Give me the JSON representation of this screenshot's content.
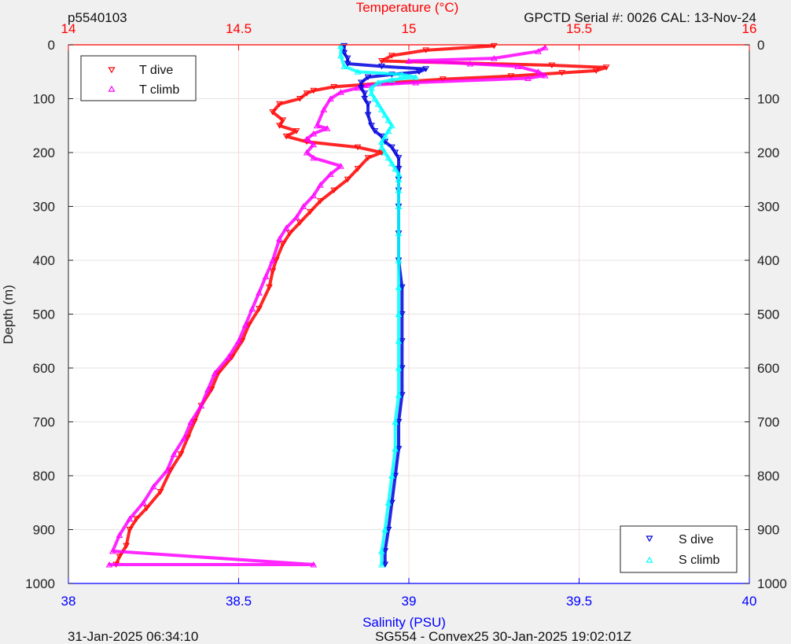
{
  "header": {
    "profile_id": "p5540103",
    "serial_text": "GPCTD Serial #: 0026 CAL: 13-Nov-24"
  },
  "footer": {
    "left_text": "31-Jan-2025 06:34:10",
    "center_text": "SG554 - Convex25 30-Jan-2025 19:02:01Z"
  },
  "colors": {
    "temperature_axis": "#ff0000",
    "salinity_axis": "#0000ff",
    "t_dive": "#ff0000",
    "t_climb": "#ff00ff",
    "s_dive": "#0000dd",
    "s_climb": "#00ffff"
  },
  "chart_data": {
    "type": "scatter",
    "y_axis": {
      "label": "Depth (m)",
      "range": [
        0,
        1000
      ],
      "reversed": true,
      "ticks": [
        0,
        100,
        200,
        300,
        400,
        500,
        600,
        700,
        800,
        900,
        1000
      ]
    },
    "x_axis_top": {
      "label": "Temperature (°C)",
      "range": [
        14,
        16
      ],
      "ticks": [
        "14",
        "14.5",
        "15",
        "15.5",
        "16"
      ]
    },
    "x_axis_bottom": {
      "label": "Salinity (PSU)",
      "range": [
        38,
        40
      ],
      "ticks": [
        "38",
        "38.5",
        "39",
        "39.5",
        "40"
      ]
    },
    "grid": true,
    "legends": [
      {
        "position": "top-left",
        "entries": [
          "T dive",
          "T climb"
        ]
      },
      {
        "position": "bottom-right",
        "entries": [
          "S dive",
          "S climb"
        ]
      }
    ],
    "series": [
      {
        "name": "T dive",
        "axis": "temperature",
        "marker": "triangle-down",
        "points": [
          [
            15.25,
            2
          ],
          [
            15.05,
            10
          ],
          [
            14.95,
            20
          ],
          [
            14.92,
            30
          ],
          [
            15.42,
            38
          ],
          [
            15.58,
            42
          ],
          [
            15.55,
            48
          ],
          [
            15.45,
            52
          ],
          [
            15.3,
            58
          ],
          [
            15.1,
            64
          ],
          [
            14.95,
            70
          ],
          [
            14.78,
            78
          ],
          [
            14.72,
            85
          ],
          [
            14.7,
            90
          ],
          [
            14.68,
            100
          ],
          [
            14.62,
            110
          ],
          [
            14.6,
            125
          ],
          [
            14.63,
            140
          ],
          [
            14.62,
            150
          ],
          [
            14.67,
            160
          ],
          [
            14.64,
            170
          ],
          [
            14.7,
            180
          ],
          [
            14.85,
            190
          ],
          [
            14.92,
            200
          ],
          [
            14.88,
            210
          ],
          [
            14.85,
            230
          ],
          [
            14.82,
            250
          ],
          [
            14.78,
            270
          ],
          [
            14.74,
            290
          ],
          [
            14.71,
            310
          ],
          [
            14.68,
            330
          ],
          [
            14.65,
            350
          ],
          [
            14.63,
            370
          ],
          [
            14.61,
            400
          ],
          [
            14.6,
            420
          ],
          [
            14.59,
            450
          ],
          [
            14.56,
            490
          ],
          [
            14.53,
            520
          ],
          [
            14.51,
            550
          ],
          [
            14.48,
            580
          ],
          [
            14.44,
            610
          ],
          [
            14.42,
            640
          ],
          [
            14.39,
            670
          ],
          [
            14.37,
            700
          ],
          [
            14.35,
            730
          ],
          [
            14.33,
            760
          ],
          [
            14.3,
            790
          ],
          [
            14.27,
            830
          ],
          [
            14.23,
            860
          ],
          [
            14.2,
            880
          ],
          [
            14.18,
            900
          ],
          [
            14.17,
            930
          ],
          [
            14.15,
            950
          ],
          [
            14.14,
            965
          ]
        ]
      },
      {
        "name": "T climb",
        "axis": "temperature",
        "marker": "triangle-up",
        "points": [
          [
            14.72,
            965
          ],
          [
            14.85,
            80
          ],
          [
            14.88,
            75
          ],
          [
            15.02,
            70
          ],
          [
            15.35,
            62
          ],
          [
            15.4,
            57
          ],
          [
            15.38,
            50
          ],
          [
            15.32,
            40
          ],
          [
            15.18,
            35
          ],
          [
            15.0,
            30
          ],
          [
            15.25,
            25
          ],
          [
            15.38,
            12
          ],
          [
            15.4,
            5
          ],
          [
            14.8,
            88
          ],
          [
            14.77,
            100
          ],
          [
            14.75,
            120
          ],
          [
            14.73,
            150
          ],
          [
            14.76,
            155
          ],
          [
            14.72,
            165
          ],
          [
            14.7,
            175
          ],
          [
            14.72,
            185
          ],
          [
            14.7,
            200
          ],
          [
            14.72,
            210
          ],
          [
            14.8,
            225
          ],
          [
            14.77,
            240
          ],
          [
            14.74,
            260
          ],
          [
            14.72,
            280
          ],
          [
            14.69,
            300
          ],
          [
            14.67,
            320
          ],
          [
            14.64,
            340
          ],
          [
            14.62,
            360
          ],
          [
            14.6,
            400
          ],
          [
            14.58,
            430
          ],
          [
            14.56,
            460
          ],
          [
            14.54,
            490
          ],
          [
            14.52,
            520
          ],
          [
            14.5,
            550
          ],
          [
            14.47,
            580
          ],
          [
            14.43,
            610
          ],
          [
            14.41,
            640
          ],
          [
            14.39,
            670
          ],
          [
            14.36,
            700
          ],
          [
            14.34,
            730
          ],
          [
            14.31,
            760
          ],
          [
            14.29,
            790
          ],
          [
            14.25,
            820
          ],
          [
            14.22,
            850
          ],
          [
            14.18,
            880
          ],
          [
            14.15,
            910
          ],
          [
            14.13,
            940
          ],
          [
            14.12,
            965
          ]
        ]
      },
      {
        "name": "S dive",
        "axis": "salinity",
        "marker": "triangle-down",
        "points": [
          [
            38.81,
            2
          ],
          [
            38.81,
            15
          ],
          [
            38.82,
            25
          ],
          [
            38.82,
            35
          ],
          [
            38.92,
            40
          ],
          [
            39.05,
            45
          ],
          [
            39.03,
            50
          ],
          [
            38.95,
            55
          ],
          [
            38.88,
            60
          ],
          [
            38.86,
            70
          ],
          [
            38.86,
            80
          ],
          [
            38.87,
            90
          ],
          [
            38.87,
            100
          ],
          [
            38.88,
            110
          ],
          [
            38.88,
            130
          ],
          [
            38.89,
            150
          ],
          [
            38.9,
            160
          ],
          [
            38.92,
            170
          ],
          [
            38.93,
            180
          ],
          [
            38.95,
            190
          ],
          [
            38.96,
            200
          ],
          [
            38.97,
            210
          ],
          [
            38.97,
            230
          ],
          [
            38.97,
            250
          ],
          [
            38.97,
            270
          ],
          [
            38.97,
            300
          ],
          [
            38.97,
            350
          ],
          [
            38.97,
            400
          ],
          [
            38.98,
            450
          ],
          [
            38.98,
            500
          ],
          [
            38.98,
            550
          ],
          [
            38.98,
            600
          ],
          [
            38.98,
            650
          ],
          [
            38.97,
            700
          ],
          [
            38.97,
            750
          ],
          [
            38.96,
            800
          ],
          [
            38.95,
            850
          ],
          [
            38.94,
            900
          ],
          [
            38.93,
            940
          ],
          [
            38.93,
            965
          ]
        ]
      },
      {
        "name": "S climb",
        "axis": "salinity",
        "marker": "triangle-up",
        "points": [
          [
            38.8,
            2
          ],
          [
            38.8,
            20
          ],
          [
            38.81,
            40
          ],
          [
            38.85,
            50
          ],
          [
            38.98,
            55
          ],
          [
            39.02,
            60
          ],
          [
            38.95,
            65
          ],
          [
            38.91,
            70
          ],
          [
            38.89,
            80
          ],
          [
            38.89,
            90
          ],
          [
            38.9,
            100
          ],
          [
            38.91,
            110
          ],
          [
            38.92,
            120
          ],
          [
            38.93,
            130
          ],
          [
            38.94,
            140
          ],
          [
            38.95,
            150
          ],
          [
            38.94,
            160
          ],
          [
            38.93,
            170
          ],
          [
            38.92,
            180
          ],
          [
            38.92,
            190
          ],
          [
            38.93,
            200
          ],
          [
            38.94,
            210
          ],
          [
            38.95,
            220
          ],
          [
            38.96,
            230
          ],
          [
            38.97,
            240
          ],
          [
            38.97,
            250
          ],
          [
            38.97,
            270
          ],
          [
            38.97,
            300
          ],
          [
            38.97,
            350
          ],
          [
            38.97,
            400
          ],
          [
            38.97,
            450
          ],
          [
            38.97,
            500
          ],
          [
            38.97,
            550
          ],
          [
            38.97,
            600
          ],
          [
            38.97,
            650
          ],
          [
            38.96,
            700
          ],
          [
            38.96,
            750
          ],
          [
            38.95,
            800
          ],
          [
            38.94,
            850
          ],
          [
            38.93,
            900
          ],
          [
            38.92,
            940
          ],
          [
            38.92,
            965
          ]
        ]
      }
    ]
  }
}
